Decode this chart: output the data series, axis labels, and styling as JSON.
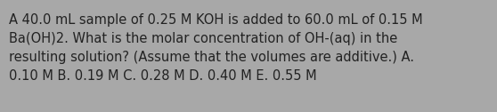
{
  "text": "A 40.0 mL sample of 0.25 M KOH is added to 60.0 mL of 0.15 M\nBa(OH)2. What is the molar concentration of OH-(aq) in the\nresulting solution? (Assume that the volumes are additive.) A.\n0.10 M B. 0.19 M C. 0.28 M D. 0.40 M E. 0.55 M",
  "background_color": "#a8a8a8",
  "text_color": "#222222",
  "font_size": 10.5,
  "fig_width": 5.58,
  "fig_height": 1.26
}
